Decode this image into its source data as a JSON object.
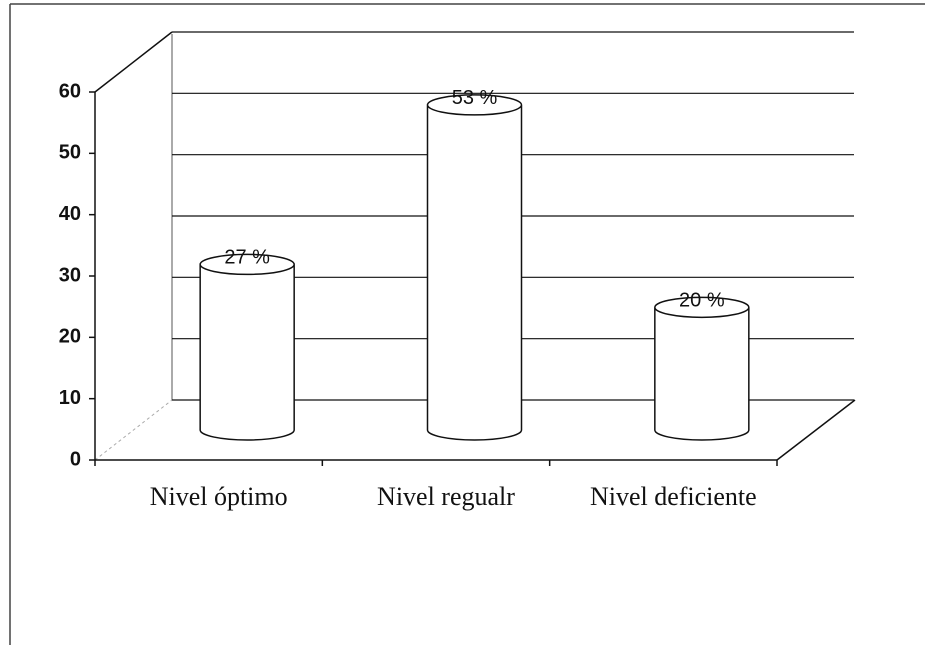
{
  "chart_data": {
    "type": "bar",
    "categories": [
      "Nivel óptimo",
      "Nivel regualr",
      "Nivel deficiente"
    ],
    "values": [
      27,
      53,
      20
    ],
    "value_labels": [
      "27 %",
      "53 %",
      "20 %"
    ],
    "color": "#ffffff",
    "ylim": [
      0,
      60
    ],
    "yticks": [
      0,
      10,
      20,
      30,
      40,
      50,
      60
    ],
    "grid": true
  }
}
